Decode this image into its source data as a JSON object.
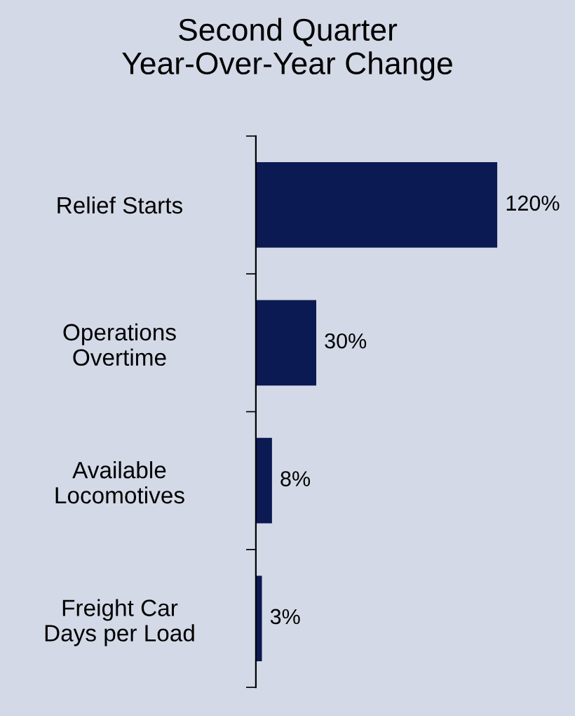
{
  "chart_data": {
    "type": "bar",
    "orientation": "horizontal",
    "title": "Second Quarter\nYear-Over-Year Change",
    "categories": [
      "Relief Starts",
      "Operations\nOvertime",
      "Available\nLocomotives",
      "Freight Car\nDays per Load"
    ],
    "values": [
      120,
      30,
      8,
      3
    ],
    "color": "#0b1a52",
    "value_labels": [
      "120%",
      "30%",
      "8%",
      "3%"
    ],
    "grid": false,
    "legend": false
  }
}
